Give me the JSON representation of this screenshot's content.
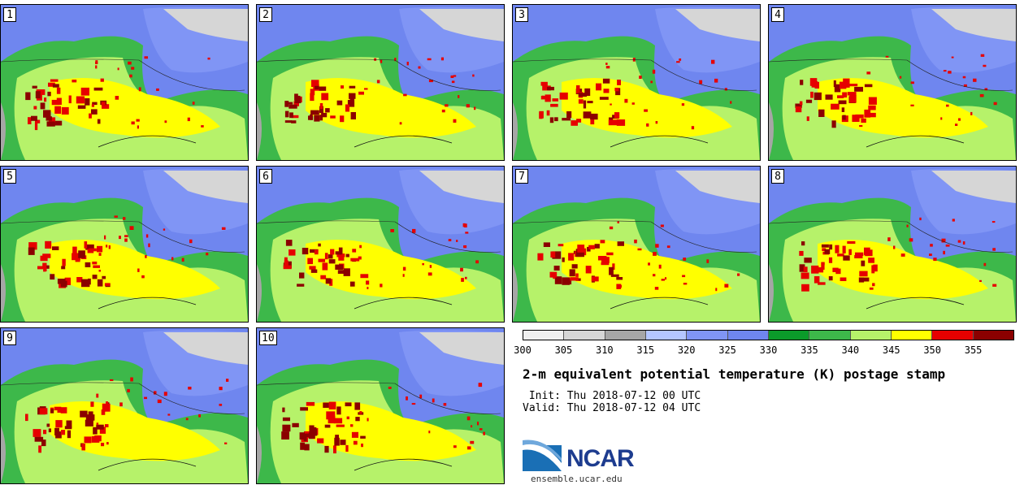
{
  "panels": [
    {
      "label": "1"
    },
    {
      "label": "2"
    },
    {
      "label": "3"
    },
    {
      "label": "4"
    },
    {
      "label": "5"
    },
    {
      "label": "6"
    },
    {
      "label": "7"
    },
    {
      "label": "8"
    },
    {
      "label": "9"
    },
    {
      "label": "10"
    }
  ],
  "colorbar": {
    "colors": [
      "#f0f0f0",
      "#d6d6d6",
      "#a6a6a6",
      "#b4c6ff",
      "#8095f5",
      "#6f86ef",
      "#0b9b2a",
      "#3db84a",
      "#b6f26a",
      "#ffff00",
      "#e60000",
      "#8b0000"
    ],
    "ticks": [
      "300",
      "305",
      "310",
      "315",
      "320",
      "325",
      "330",
      "335",
      "340",
      "345",
      "350",
      "355"
    ]
  },
  "title": "2-m equivalent potential temperature (K) postage stamp",
  "init": " Init: Thu 2018-07-12 00 UTC",
  "valid": "Valid: Thu 2018-07-12 04 UTC",
  "logo": {
    "text": "NCAR"
  },
  "site": "ensemble.ucar.edu"
}
